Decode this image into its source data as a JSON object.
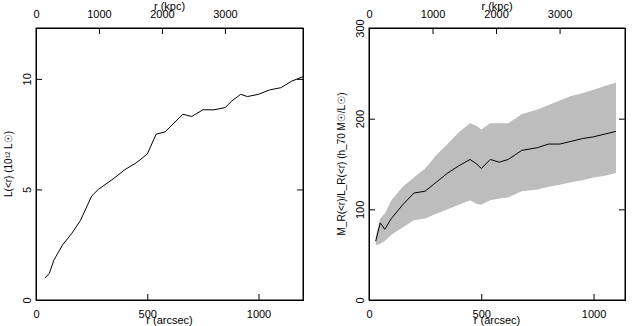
{
  "chart_data": [
    {
      "type": "line",
      "xlabel": "r (arcsec)",
      "x2label": "r (kpc)",
      "ylabel": "L(<r) (10¹² L☉)",
      "xlim": [
        0,
        1200
      ],
      "xticks": [
        0,
        500,
        1000
      ],
      "x2lim": [
        0,
        4240
      ],
      "x2ticks": [
        0,
        1000,
        2000,
        3000
      ],
      "ylim": [
        0,
        12.3
      ],
      "yticks": [
        0,
        5,
        10
      ],
      "x": [
        40,
        60,
        80,
        120,
        160,
        200,
        250,
        280,
        350,
        400,
        450,
        500,
        540,
        580,
        620,
        660,
        700,
        750,
        800,
        850,
        880,
        920,
        950,
        1000,
        1050,
        1100,
        1150,
        1200
      ],
      "series": [
        {
          "color": "#000000",
          "values": [
            1.0,
            1.2,
            1.8,
            2.5,
            3.0,
            3.6,
            4.7,
            5.0,
            5.5,
            5.9,
            6.2,
            6.6,
            7.5,
            7.6,
            8.0,
            8.4,
            8.3,
            8.6,
            8.6,
            8.7,
            9.0,
            9.3,
            9.2,
            9.3,
            9.5,
            9.6,
            9.9,
            10.1
          ]
        }
      ]
    },
    {
      "type": "line",
      "xlabel": "r (arcsec)",
      "x2label": "r (kpc)",
      "ylabel": "M_R(<r)/L_R(<r) (h_70 M☉/L☉)",
      "xlim": [
        0,
        1140
      ],
      "xticks": [
        0,
        500,
        1000
      ],
      "x2lim": [
        0,
        4030
      ],
      "x2ticks": [
        0,
        1000,
        2000,
        3000
      ],
      "ylim": [
        0,
        300
      ],
      "yticks": [
        0,
        100,
        200,
        300
      ],
      "x": [
        30,
        50,
        70,
        100,
        150,
        200,
        250,
        300,
        350,
        400,
        450,
        480,
        500,
        540,
        580,
        620,
        680,
        750,
        800,
        850,
        900,
        950,
        1000,
        1050,
        1100
      ],
      "series": [
        {
          "color": "#000000",
          "values": [
            65,
            85,
            78,
            90,
            105,
            118,
            120,
            130,
            140,
            148,
            155,
            150,
            145,
            155,
            152,
            155,
            165,
            168,
            172,
            172,
            175,
            178,
            180,
            183,
            186
          ],
          "lower": [
            60,
            62,
            65,
            72,
            80,
            88,
            90,
            95,
            100,
            105,
            110,
            106,
            105,
            110,
            112,
            113,
            120,
            122,
            125,
            127,
            130,
            132,
            135,
            137,
            140
          ],
          "upper": [
            70,
            90,
            95,
            110,
            125,
            135,
            145,
            160,
            172,
            185,
            195,
            192,
            188,
            195,
            195,
            195,
            205,
            210,
            215,
            220,
            225,
            228,
            232,
            236,
            240
          ]
        }
      ]
    }
  ]
}
